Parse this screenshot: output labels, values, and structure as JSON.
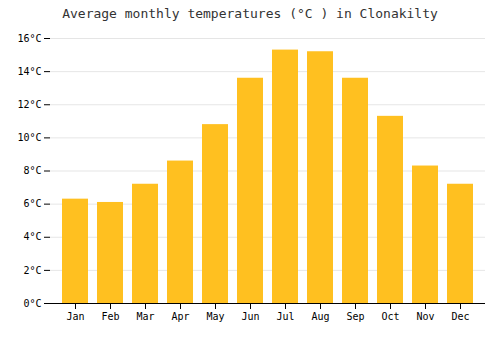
{
  "chart_data": {
    "type": "bar",
    "title": "Average monthly temperatures (°C ) in Clonakilty",
    "categories": [
      "Jan",
      "Feb",
      "Mar",
      "Apr",
      "May",
      "Jun",
      "Jul",
      "Aug",
      "Sep",
      "Oct",
      "Nov",
      "Dec"
    ],
    "values": [
      6.3,
      6.1,
      7.2,
      8.6,
      10.8,
      13.6,
      15.3,
      15.2,
      13.6,
      11.3,
      8.3,
      7.2
    ],
    "color": "#FFC020",
    "ylim": [
      0,
      16
    ],
    "yticks": [
      {
        "value": 0,
        "label": "0°C"
      },
      {
        "value": 2,
        "label": "2°C"
      },
      {
        "value": 4,
        "label": "4°C"
      },
      {
        "value": 6,
        "label": "6°C"
      },
      {
        "value": 8,
        "label": "8°C"
      },
      {
        "value": 10,
        "label": "10°C"
      },
      {
        "value": 12,
        "label": "12°C"
      },
      {
        "value": 14,
        "label": "14°C"
      },
      {
        "value": 16,
        "label": "16°C"
      }
    ],
    "grid": true
  }
}
